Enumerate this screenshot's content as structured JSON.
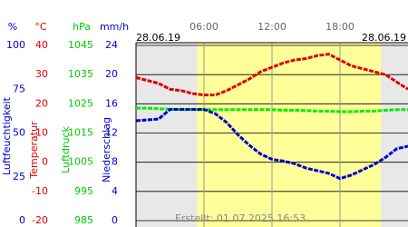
{
  "chart_data": {
    "type": "line",
    "date_left": "28.06.19",
    "date_right": "28.06.19",
    "footer": "Erstellt: 01.07.2025 16:53",
    "x": [
      0,
      1,
      2,
      3,
      4,
      5,
      6,
      7,
      8,
      9,
      10,
      11,
      12,
      13,
      14,
      15,
      16,
      17,
      18,
      19,
      20,
      21,
      22,
      23,
      24
    ],
    "xlim": [
      0,
      24
    ],
    "xticks": [
      {
        "value": 6,
        "label": "06:00"
      },
      {
        "value": 12,
        "label": "12:00"
      },
      {
        "value": 18,
        "label": "18:00"
      }
    ],
    "daylight": [
      5.4,
      21.6
    ],
    "grid_axis": 1,
    "axes": [
      {
        "label": "Luftfeuchtigkeit",
        "unit": "%",
        "color": "#0000cc",
        "ylim": [
          0,
          100
        ],
        "yticks": [
          0,
          25,
          50,
          75,
          100
        ]
      },
      {
        "label": "Temperatur",
        "unit": "°C",
        "color": "#dd0000",
        "ylim": [
          -20,
          40
        ],
        "yticks": [
          -20,
          -10,
          0,
          10,
          20,
          30,
          40
        ]
      },
      {
        "label": "Luftdruck",
        "unit": "hPa",
        "color": "#00cc00",
        "ylim": [
          985,
          1045
        ],
        "yticks": [
          985,
          995,
          1005,
          1015,
          1025,
          1035,
          1045
        ]
      },
      {
        "label": "Niederschlag",
        "unit": "mm/h",
        "color": "#0000cc",
        "ylim": [
          0,
          24
        ],
        "yticks": [
          0,
          4,
          8,
          12,
          16,
          20,
          24
        ]
      }
    ],
    "series": [
      {
        "name": "Temperatur",
        "axis": 1,
        "color": "#dd0000",
        "values": [
          29,
          28,
          27,
          25,
          24.5,
          23.5,
          23,
          23,
          24.5,
          26.5,
          28.5,
          31,
          32.5,
          34,
          35,
          35.5,
          36.5,
          37,
          35,
          33,
          32,
          31,
          30,
          27.5,
          25
        ]
      },
      {
        "name": "Luftdruck",
        "axis": 2,
        "color": "#00ee00",
        "values": [
          1023.5,
          1023.5,
          1023.3,
          1023.2,
          1023,
          1023,
          1023,
          1023,
          1023,
          1023,
          1023,
          1023,
          1023,
          1022.8,
          1022.8,
          1022.7,
          1022.5,
          1022.5,
          1022.3,
          1022.3,
          1022.5,
          1022.5,
          1022.8,
          1023,
          1023
        ]
      },
      {
        "name": "Luftfeuchtigkeit",
        "axis": 0,
        "color": "#0000cc",
        "values": [
          57,
          57.5,
          58,
          63.5,
          63.5,
          63.5,
          63.5,
          61,
          56,
          49,
          43,
          38,
          35,
          34,
          32.5,
          30,
          28.5,
          27,
          24,
          26,
          29,
          32,
          36,
          41,
          42.5
        ]
      }
    ]
  }
}
